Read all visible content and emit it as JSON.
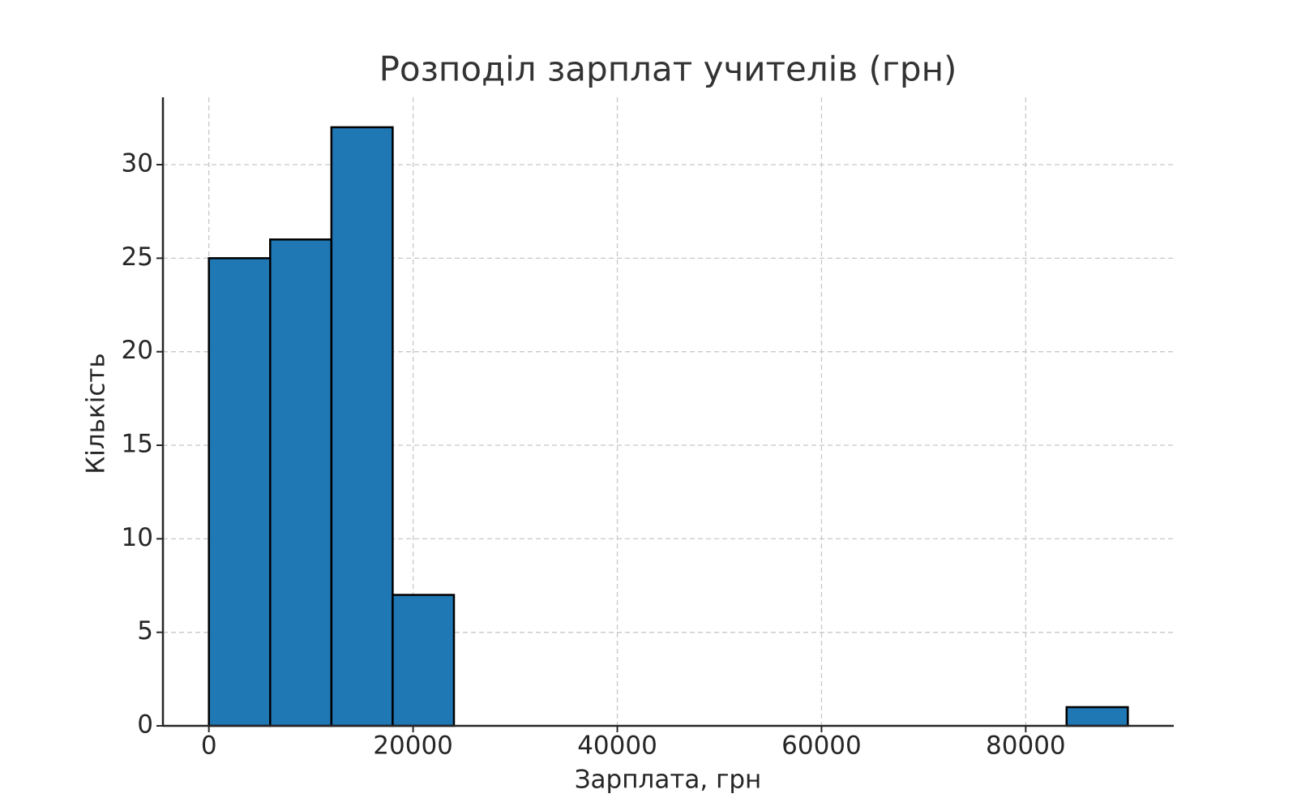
{
  "chart_data": {
    "type": "histogram",
    "title": "Розподіл зарплат учителів (грн)",
    "xlabel": "Зарплата, грн",
    "ylabel": "Кількість",
    "bins": [
      0,
      6000,
      12000,
      18000,
      24000,
      30000,
      36000,
      42000,
      48000,
      54000,
      60000,
      66000,
      72000,
      78000,
      84000,
      90000
    ],
    "counts": [
      25,
      26,
      32,
      7,
      0,
      0,
      0,
      0,
      0,
      0,
      0,
      0,
      0,
      0,
      1
    ],
    "color": "#1f77b4",
    "xlim": [
      -4500,
      94500
    ],
    "ylim": [
      0,
      33.6
    ],
    "xticks": [
      0,
      20000,
      40000,
      60000,
      80000
    ],
    "yticks": [
      0,
      5,
      10,
      15,
      20,
      25,
      30
    ],
    "grid": true
  }
}
